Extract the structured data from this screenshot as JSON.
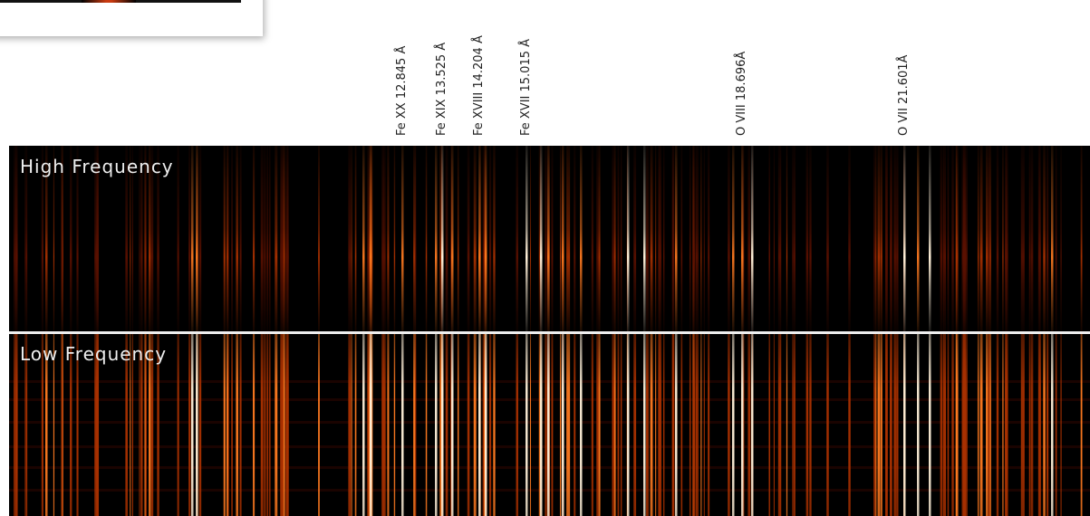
{
  "labels": [
    "Fe XX  12.845 Å",
    "Fe XIX  13.525 Å",
    "Fe XVIII  14.204 Å",
    "Fe XVII  15.015 Å",
    "O VIII  18.696Å",
    "O VII  21.601Å"
  ],
  "panels": [
    "High Frequency",
    "Low Frequency"
  ]
}
